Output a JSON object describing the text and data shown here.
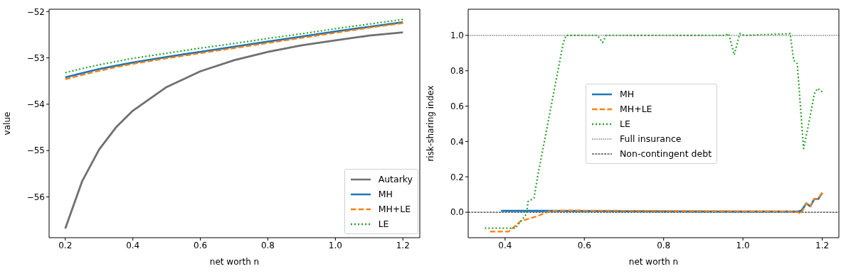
{
  "chart_data": [
    {
      "type": "line",
      "xlabel": "net worth n",
      "ylabel": "value",
      "legend": "bottom right",
      "x": [
        0.2,
        0.25,
        0.3,
        0.35,
        0.4,
        0.5,
        0.6,
        0.7,
        0.8,
        0.9,
        1.0,
        1.1,
        1.2
      ],
      "xlim": [
        0.152,
        1.25
      ],
      "ylim": [
        -56.88,
        -51.95
      ],
      "xticks": [
        0.2,
        0.4,
        0.6,
        0.8,
        {
          "value": 1.0,
          "label": "1.0"
        },
        1.2
      ],
      "yticks": [
        {
          "value": -56,
          "label": "−56"
        },
        {
          "value": -55,
          "label": "−55"
        },
        {
          "value": -54,
          "label": "−54"
        },
        {
          "value": -53,
          "label": "−53"
        },
        {
          "value": -52,
          "label": "−52"
        }
      ],
      "series": [
        {
          "name": "Autarky",
          "color": "#707070",
          "line_style": "solid",
          "values": [
            -56.68,
            -55.66,
            -54.98,
            -54.5,
            -54.14,
            -53.63,
            -53.29,
            -53.05,
            -52.87,
            -52.73,
            -52.62,
            -52.52,
            -52.45
          ]
        },
        {
          "name": "MH",
          "color": "#1f77b4",
          "line_style": "solid",
          "values": [
            -53.42,
            -53.33,
            -53.24,
            -53.17,
            -53.1,
            -52.98,
            -52.87,
            -52.76,
            -52.65,
            -52.54,
            -52.43,
            -52.33,
            -52.23
          ]
        },
        {
          "name": "MH+LE",
          "color": "#ff7f0e",
          "line_style": "dashed",
          "values": [
            -53.46,
            -53.37,
            -53.28,
            -53.2,
            -53.13,
            -53.01,
            -52.9,
            -52.79,
            -52.68,
            -52.57,
            -52.46,
            -52.35,
            -52.25
          ]
        },
        {
          "name": "LE",
          "color": "#2ca02c",
          "line_style": "dotted",
          "values": [
            -53.32,
            -53.23,
            -53.15,
            -53.08,
            -53.01,
            -52.9,
            -52.79,
            -52.69,
            -52.58,
            -52.48,
            -52.37,
            -52.27,
            -52.17
          ]
        }
      ]
    },
    {
      "type": "line",
      "xlabel": "net worth n",
      "ylabel": "risk-sharing index",
      "legend": "center",
      "xlim": [
        0.307,
        1.242
      ],
      "ylim": [
        -0.144,
        1.148
      ],
      "xticks": [
        0.4,
        0.6,
        0.8,
        {
          "value": 1.0,
          "label": "1.0"
        },
        1.2
      ],
      "yticks": [
        {
          "value": 0,
          "label": "0.0"
        },
        0.2,
        0.4,
        0.6,
        0.8,
        {
          "value": 1.0,
          "label": "1.0"
        }
      ],
      "series": [
        {
          "name": "MH",
          "color": "#1f77b4",
          "line_style": "solid",
          "x": [
            0.39,
            0.6,
            0.8,
            1.0,
            1.14,
            1.148,
            1.16,
            1.17,
            1.18,
            1.19,
            1.2
          ],
          "values": [
            0.008,
            0.007,
            0.005,
            0.004,
            0.004,
            0.01,
            0.05,
            0.033,
            0.075,
            0.075,
            0.11
          ]
        },
        {
          "name": "MH+LE",
          "color": "#ff7f0e",
          "line_style": "dashed",
          "x": [
            0.362,
            0.409,
            0.439,
            0.479,
            0.516,
            0.553,
            1.135,
            1.146,
            1.16,
            1.17,
            1.18,
            1.19,
            1.2
          ],
          "values": [
            -0.109,
            -0.109,
            -0.051,
            -0.024,
            0.008,
            0.01,
            0.004,
            -0.01,
            0.05,
            0.033,
            0.075,
            0.075,
            0.11
          ]
        },
        {
          "name": "LE",
          "color": "#2ca02c",
          "line_style": "dotted",
          "x": [
            0.349,
            0.426,
            0.454,
            0.458,
            0.473,
            0.482,
            0.488,
            0.547,
            0.554,
            0.633,
            0.646,
            0.655,
            0.955,
            0.964,
            0.978,
            0.992,
            1.004,
            1.119,
            1.128,
            1.137,
            1.153,
            1.165,
            1.18,
            1.188,
            1.2
          ],
          "values": [
            -0.09,
            -0.09,
            -0.01,
            0.06,
            0.08,
            0.2,
            0.27,
            0.96,
            1.0,
            1.0,
            0.96,
            1.0,
            1.0,
            1.01,
            0.89,
            1.01,
            1.0,
            1.01,
            0.86,
            0.84,
            0.36,
            0.49,
            0.67,
            0.7,
            0.68
          ]
        }
      ],
      "ref_lines": [
        {
          "axis": "y",
          "value": 1.0,
          "label": "Full insurance",
          "color": "#000000",
          "line_style": "dotted"
        },
        {
          "axis": "y",
          "value": 0,
          "label": "Non-contingent debt",
          "color": "#000000",
          "line_style": "dashed"
        }
      ]
    }
  ]
}
